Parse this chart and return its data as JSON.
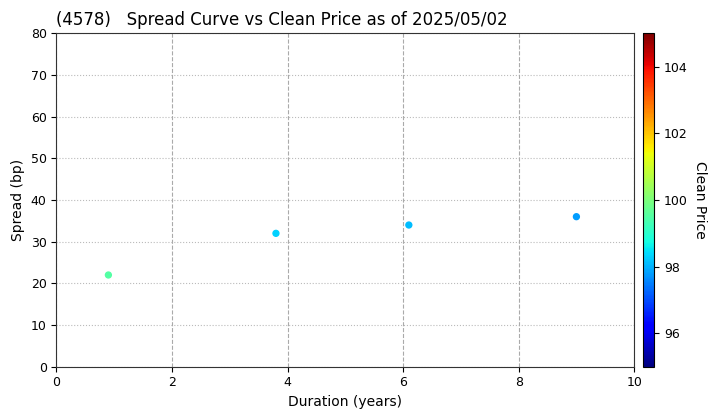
{
  "title": "(4578)   Spread Curve vs Clean Price as of 2025/05/02",
  "xlabel": "Duration (years)",
  "ylabel": "Spread (bp)",
  "colorbar_label": "Clean Price",
  "points": [
    {
      "duration": 0.9,
      "spread": 22,
      "price": 99.5
    },
    {
      "duration": 3.8,
      "spread": 32,
      "price": 98.3
    },
    {
      "duration": 6.1,
      "spread": 34,
      "price": 98.1
    },
    {
      "duration": 9.0,
      "spread": 36,
      "price": 97.8
    }
  ],
  "xlim": [
    0,
    10
  ],
  "ylim": [
    0,
    80
  ],
  "yticks": [
    0,
    10,
    20,
    30,
    40,
    50,
    60,
    70,
    80
  ],
  "xticks": [
    0,
    2,
    4,
    6,
    8,
    10
  ],
  "cmap_min": 95,
  "cmap_max": 105,
  "colorbar_ticks": [
    96,
    98,
    100,
    102,
    104
  ],
  "marker_size": 18,
  "title_fontsize": 12,
  "axis_label_fontsize": 10,
  "tick_fontsize": 9,
  "background_color": "#ffffff",
  "grid_color_h": "#bbbbbb",
  "grid_color_v": "#aaaaaa"
}
